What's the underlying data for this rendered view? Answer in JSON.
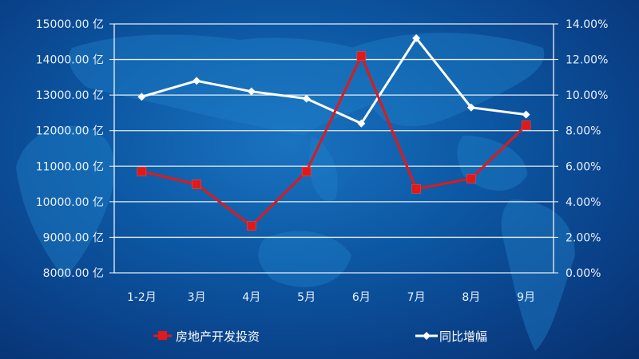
{
  "chart_data": {
    "type": "line",
    "title": "",
    "categories": [
      "1-2月",
      "3月",
      "4月",
      "5月",
      "6月",
      "7月",
      "8月",
      "9月"
    ],
    "series": [
      {
        "name": "房地产开发投资",
        "axis": "left",
        "unit": "亿",
        "color": "#e01919",
        "marker": "square",
        "values": [
          10850,
          10490,
          9320,
          10850,
          14100,
          10360,
          10650,
          12150
        ]
      },
      {
        "name": "同比增幅",
        "axis": "right",
        "unit": "%",
        "color": "#ffffff",
        "marker": "diamond",
        "values": [
          9.9,
          10.8,
          10.2,
          9.8,
          8.4,
          13.2,
          9.3,
          8.9
        ]
      }
    ],
    "left_axis": {
      "ylim": [
        8000,
        15000
      ],
      "step": 1000,
      "tick_labels": [
        "15000.00 亿",
        "14000.00 亿",
        "13000.00 亿",
        "12000.00 亿",
        "11000.00 亿",
        "10000.00 亿",
        "9000.00 亿",
        "8000.00 亿"
      ]
    },
    "right_axis": {
      "ylim": [
        0,
        14
      ],
      "step": 2,
      "tick_labels": [
        "14.00%",
        "12.00%",
        "10.00%",
        "8.00%",
        "6.00%",
        "4.00%",
        "2.00%",
        "0.00%"
      ]
    },
    "grid": true,
    "legend_position": "bottom"
  },
  "legend": {
    "items": [
      {
        "label": "房地产开发投资"
      },
      {
        "label": "同比增幅"
      }
    ]
  }
}
